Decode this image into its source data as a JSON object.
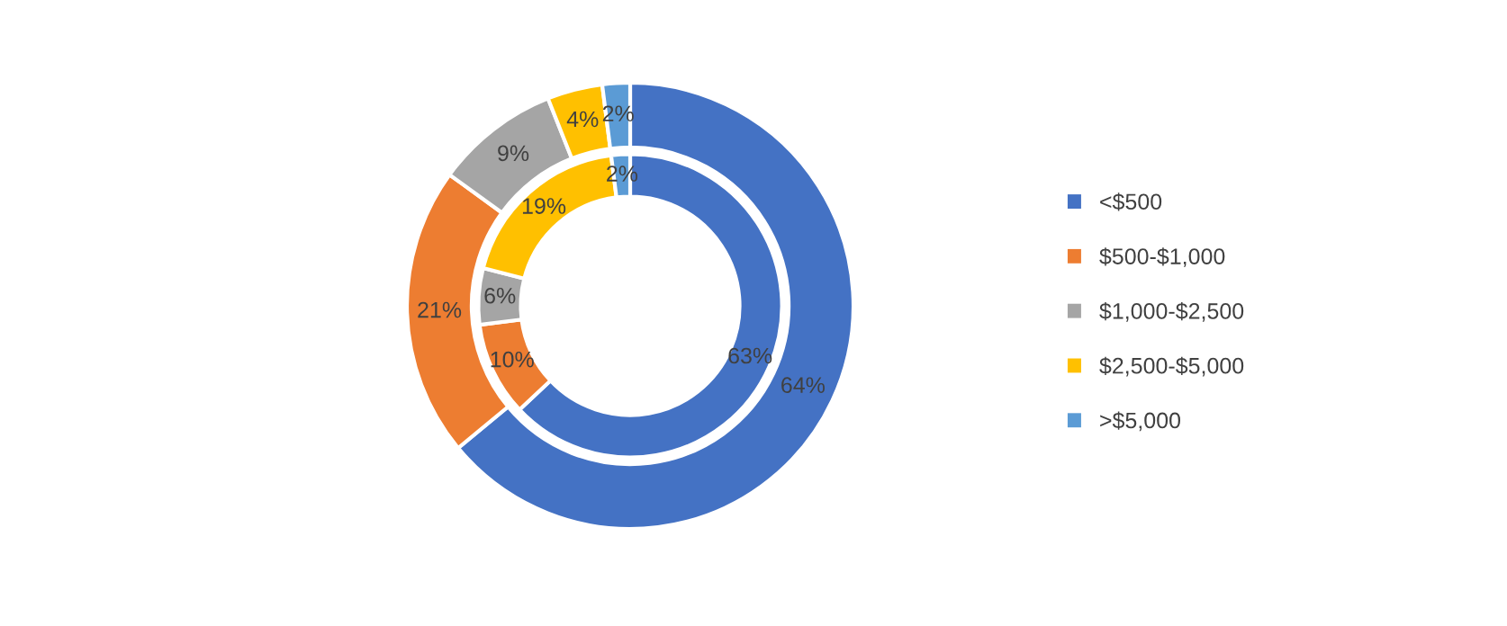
{
  "chart_data": {
    "type": "donut",
    "categories": [
      "<$500",
      "$500-$1,000",
      "$1,000-$2,500",
      "$2,500-$5,000",
      ">$5,000"
    ],
    "colors": [
      "#4472c4",
      "#ed7d31",
      "#a5a5a5",
      "#ffc000",
      "#5b9bd5"
    ],
    "series": [
      {
        "values": [
          63,
          10,
          6,
          19,
          2
        ],
        "value_labels": [
          "63%",
          "10%",
          "6%",
          "19%",
          "2%"
        ]
      },
      {
        "values": [
          64,
          21,
          9,
          4,
          2
        ],
        "value_labels": [
          "64%",
          "21%",
          "9%",
          "4%",
          "2%"
        ]
      }
    ],
    "legend": "right"
  }
}
